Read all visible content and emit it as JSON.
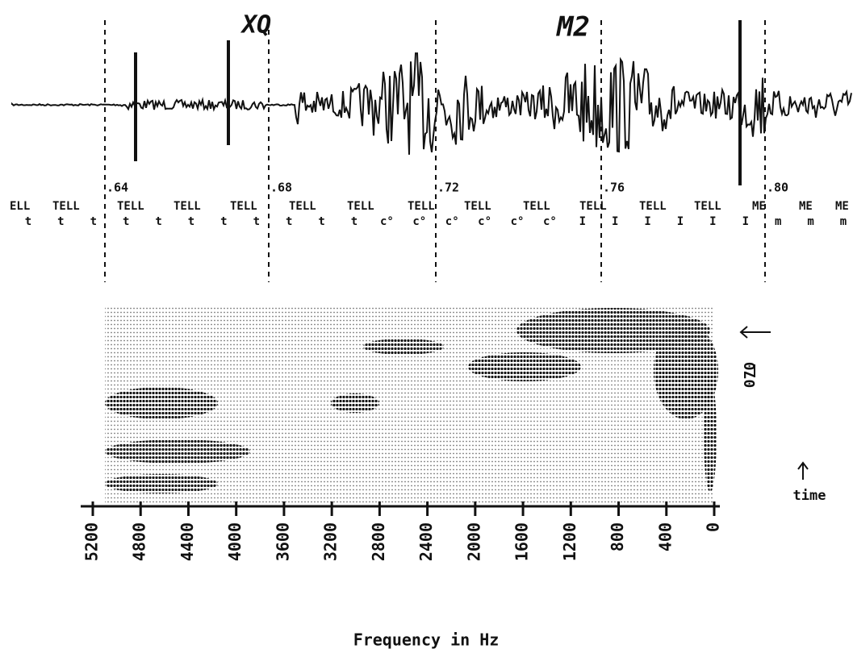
{
  "annotations": {
    "segment_mark": "XQ",
    "stress_mark": "M2"
  },
  "time_marks": [
    ".64",
    ".68",
    ".72",
    ".76",
    ".80"
  ],
  "word_labels": [
    "ELL",
    "TELL",
    "TELL",
    "TELL",
    "TELL",
    "TELL",
    "TELL",
    "TELL",
    "TELL",
    "TELL",
    "TELL",
    "TELL",
    "TELL",
    "ME",
    "ME",
    "ME"
  ],
  "phone_labels": [
    "t",
    "t",
    "t",
    "t",
    "t",
    "t",
    "t",
    "t",
    "t",
    "t",
    "t",
    "c°",
    "c°",
    "c°",
    "c°",
    "c°",
    "c°",
    "I",
    "I",
    "I",
    "I",
    "I",
    "I",
    "m",
    "m",
    "m"
  ],
  "spectrogram": {
    "side_label": "070",
    "time_label": "time",
    "frequency_axis": {
      "label": "Frequency in Hz",
      "lim": [
        5200,
        0
      ],
      "ticks": [
        5200,
        4800,
        4400,
        4000,
        3600,
        3200,
        2800,
        2400,
        2000,
        1600,
        1200,
        800,
        400,
        0
      ]
    }
  }
}
